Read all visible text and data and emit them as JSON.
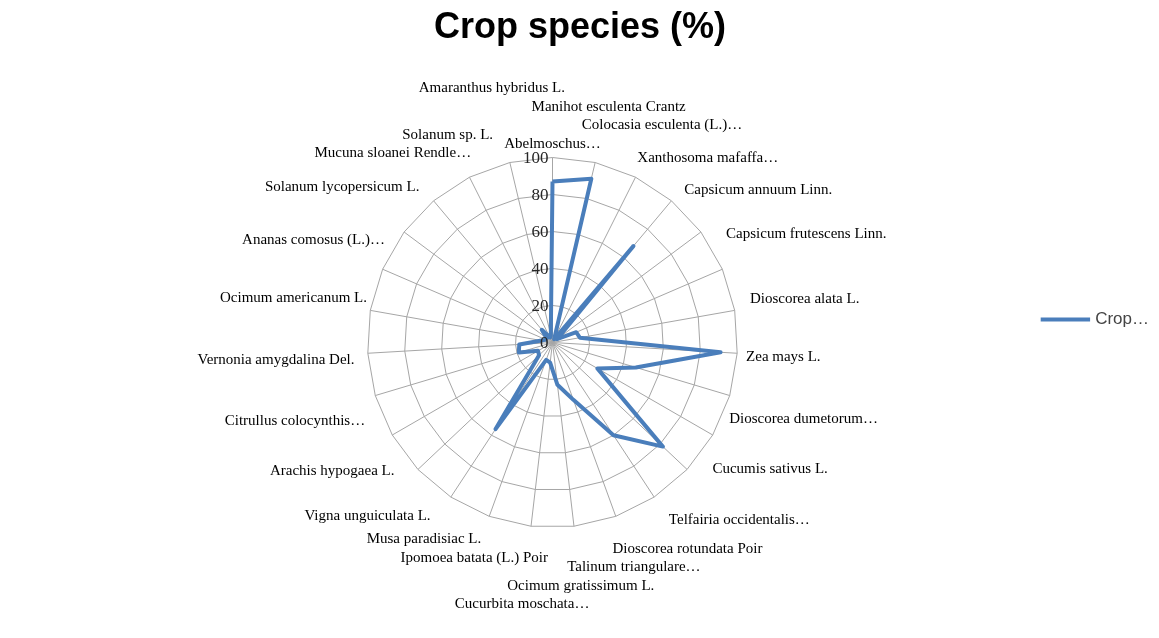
{
  "chart_data": {
    "type": "radar",
    "title": "Crop species (%)",
    "categories": [
      "Abelmoschus…",
      "Manihot esculenta Crantz",
      "Colocasia esculenta (L.)…",
      "Xanthosoma mafaffa…",
      "Capsicum annuum Linn.",
      "Capsicum frutescens Linn.",
      "Dioscorea alata L.",
      "Zea mays L.",
      "Dioscorea dumetorum…",
      "Cucumis sativus L.",
      "Telfairia occidentalis…",
      "Dioscorea rotundata Poir",
      "Talinum triangulare…",
      "Ocimum gratissimum L.",
      "Cucurbita moschata…",
      "Ipomoea batata (L.) Poir",
      "Musa paradisiac L.",
      "Vigna  unguiculata L.",
      "Arachis hypogaea L.",
      "Citrullus colocynthis…",
      "Vernonia amygdalina Del.",
      "Ocimum americanum L.",
      "Ananas comosus (L.)…",
      "Solanum lycopersicum L.",
      "Mucuna sloanei Rendle…",
      "Solanum sp. L.",
      "Amaranthus hybridus L."
    ],
    "series": [
      {
        "name": "Crop…",
        "color": "#4a7ebb",
        "values": [
          87,
          91,
          2,
          68,
          3,
          14,
          15,
          91,
          47,
          28,
          82,
          60,
          33,
          23,
          11,
          10,
          56,
          10,
          9,
          19,
          18,
          6,
          4,
          4,
          9,
          3,
          4
        ]
      }
    ],
    "ylim": [
      0,
      100
    ],
    "yticks": [
      0,
      20,
      40,
      60,
      80,
      100
    ],
    "grid": true,
    "legend": "right",
    "marker": "none",
    "line_style": "solid"
  }
}
